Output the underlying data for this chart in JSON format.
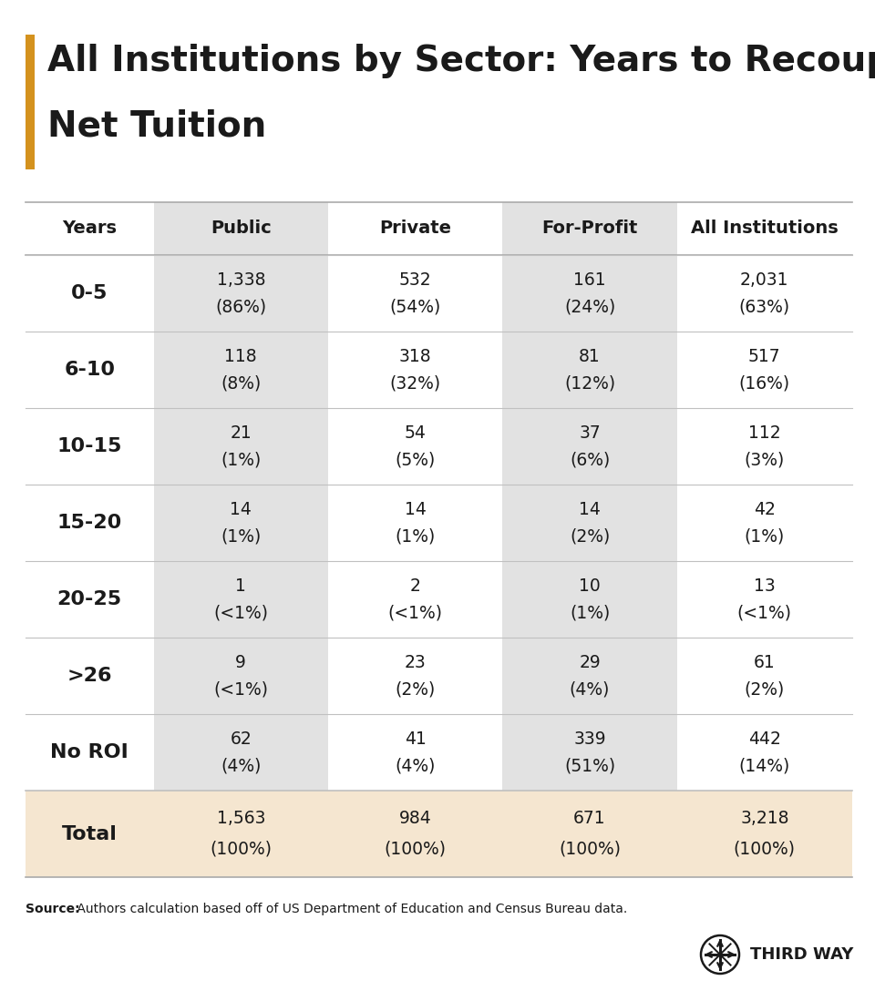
{
  "title_line1": "All Institutions by Sector: Years to Recoup",
  "title_line2": "Net Tuition",
  "title_bar_color": "#D4921E",
  "background_color": "#FFFFFF",
  "col_headers": [
    "Years",
    "Public",
    "Private",
    "For-Profit",
    "All Institutions"
  ],
  "col_header_bg": [
    "#FFFFFF",
    "#E2E2E2",
    "#FFFFFF",
    "#E2E2E2",
    "#FFFFFF"
  ],
  "rows": [
    {
      "label": "0-5",
      "cells": [
        {
          "line1": "1,338",
          "line2": "(86%)"
        },
        {
          "line1": "532",
          "line2": "(54%)"
        },
        {
          "line1": "161",
          "line2": "(24%)"
        },
        {
          "line1": "2,031",
          "line2": "(63%)"
        }
      ]
    },
    {
      "label": "6-10",
      "cells": [
        {
          "line1": "118",
          "line2": "(8%)"
        },
        {
          "line1": "318",
          "line2": "(32%)"
        },
        {
          "line1": "81",
          "line2": "(12%)"
        },
        {
          "line1": "517",
          "line2": "(16%)"
        }
      ]
    },
    {
      "label": "10-15",
      "cells": [
        {
          "line1": "21",
          "line2": "(1%)"
        },
        {
          "line1": "54",
          "line2": "(5%)"
        },
        {
          "line1": "37",
          "line2": "(6%)"
        },
        {
          "line1": "112",
          "line2": "(3%)"
        }
      ]
    },
    {
      "label": "15-20",
      "cells": [
        {
          "line1": "14",
          "line2": "(1%)"
        },
        {
          "line1": "14",
          "line2": "(1%)"
        },
        {
          "line1": "14",
          "line2": "(2%)"
        },
        {
          "line1": "42",
          "line2": "(1%)"
        }
      ]
    },
    {
      "label": "20-25",
      "cells": [
        {
          "line1": "1",
          "line2": "(<1%)"
        },
        {
          "line1": "2",
          "line2": "(<1%)"
        },
        {
          "line1": "10",
          "line2": "(1%)"
        },
        {
          "line1": "13",
          "line2": "(<1%)"
        }
      ]
    },
    {
      "label": ">26",
      "cells": [
        {
          "line1": "9",
          "line2": "(<1%)"
        },
        {
          "line1": "23",
          "line2": "(2%)"
        },
        {
          "line1": "29",
          "line2": "(4%)"
        },
        {
          "line1": "61",
          "line2": "(2%)"
        }
      ]
    },
    {
      "label": "No ROI",
      "cells": [
        {
          "line1": "62",
          "line2": "(4%)"
        },
        {
          "line1": "41",
          "line2": "(4%)"
        },
        {
          "line1": "339",
          "line2": "(51%)"
        },
        {
          "line1": "442",
          "line2": "(14%)"
        }
      ]
    },
    {
      "label": "Total",
      "is_total": true,
      "cells": [
        {
          "line1": "1,563",
          "line2": "(100%)"
        },
        {
          "line1": "984",
          "line2": "(100%)"
        },
        {
          "line1": "671",
          "line2": "(100%)"
        },
        {
          "line1": "3,218",
          "line2": "(100%)"
        }
      ]
    }
  ],
  "col_data_bg": [
    "#FFFFFF",
    "#E2E2E2",
    "#FFFFFF",
    "#E2E2E2",
    "#FFFFFF"
  ],
  "total_row_color": "#F5E6D0",
  "grid_line_color": "#C8C8C8",
  "text_color": "#1A1A1A",
  "title_fontsize": 28,
  "header_fontsize": 14,
  "row_label_fontsize": 16,
  "cell_fontsize": 13.5,
  "source_fontsize": 10,
  "logo_fontsize": 13
}
